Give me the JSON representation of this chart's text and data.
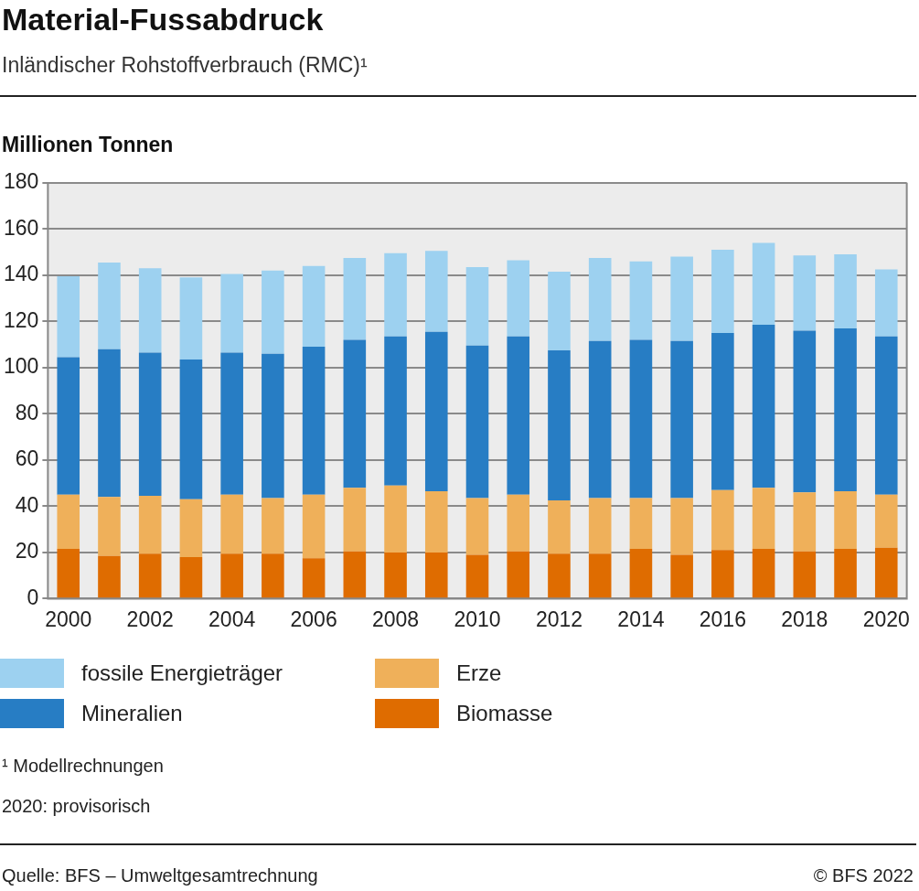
{
  "chart_data": {
    "type": "bar",
    "stacked": true,
    "title": "Material-Fussabdruck",
    "subtitle": "Inländischer Rohstoffverbrauch (RMC)¹",
    "ylabel": "Millionen Tonnen",
    "categories": [
      "2000",
      null,
      "2002",
      null,
      "2004",
      null,
      "2006",
      null,
      "2008",
      null,
      "2010",
      null,
      "2012",
      null,
      "2014",
      null,
      "2016",
      null,
      "2018",
      null,
      "2020"
    ],
    "series": [
      {
        "name": "Biomasse",
        "color": "#df6c00",
        "values": [
          21.5,
          18.5,
          19.5,
          18,
          19.5,
          19.5,
          17.5,
          20.5,
          20,
          20,
          19,
          20.5,
          19.5,
          19.5,
          21.5,
          19,
          21,
          21.5,
          20.5,
          21.5,
          22
        ]
      },
      {
        "name": "Erze",
        "color": "#efb05a",
        "values": [
          23.5,
          25.5,
          25,
          25,
          25.5,
          24,
          27.5,
          27.5,
          29,
          26.5,
          24.5,
          24.5,
          23,
          24,
          22,
          24.5,
          26,
          26.5,
          25.5,
          25,
          23
        ]
      },
      {
        "name": "Mineralien",
        "color": "#277dc4",
        "values": [
          59.5,
          64,
          62,
          60.5,
          61.5,
          62.5,
          64,
          64,
          64.5,
          69,
          66,
          68.5,
          65,
          68,
          68.5,
          68,
          68,
          70.5,
          70,
          70.5,
          68.5
        ]
      },
      {
        "name": "fossile Energieträger",
        "color": "#9dd1f0",
        "values": [
          35,
          37.5,
          36.5,
          35.5,
          34,
          36,
          35,
          35.5,
          36,
          35,
          34,
          33,
          34,
          36,
          34,
          36.5,
          36,
          35.5,
          32.5,
          32,
          29
        ]
      }
    ],
    "ylim": [
      0,
      180
    ],
    "yticks": [
      0,
      20,
      40,
      60,
      80,
      100,
      120,
      140,
      160,
      180
    ],
    "grid": "y",
    "legend": "bottom",
    "annotations": [
      "¹ Modellrechnungen",
      "2020: provisorisch",
      "Quelle: BFS – Umweltgesamtrechnung",
      "© BFS 2022"
    ]
  }
}
